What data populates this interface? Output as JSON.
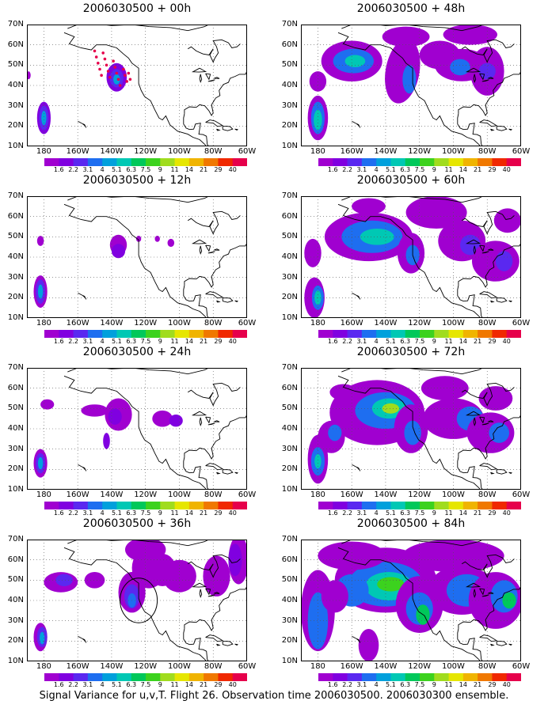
{
  "caption": "Signal Variance for u,v,T. Flight 26. Observation time 2006030500. 2006030300 ensemble.",
  "lat_labels": [
    "70N",
    "60N",
    "50N",
    "40N",
    "30N",
    "20N",
    "10N"
  ],
  "lon_labels": [
    "180",
    "160W",
    "140W",
    "120W",
    "100W",
    "80W",
    "60W"
  ],
  "colorbar": {
    "labels": [
      "1.6",
      "2.2",
      "3.1",
      "4",
      "5.1",
      "6.3",
      "7.5",
      "9",
      "11",
      "14",
      "21",
      "29",
      "40"
    ],
    "colors": [
      "#a000d0",
      "#8000e0",
      "#5a28f0",
      "#1e6ef0",
      "#00a0dc",
      "#00c8b4",
      "#00c85a",
      "#3cd21e",
      "#a0dc1e",
      "#e6e600",
      "#f0b400",
      "#f07800",
      "#f02800",
      "#e6004b"
    ]
  },
  "panels": [
    {
      "id": "p00",
      "title": "2006030500 + 00h"
    },
    {
      "id": "p48",
      "title": "2006030500 + 48h"
    },
    {
      "id": "p12",
      "title": "2006030500 + 12h"
    },
    {
      "id": "p60",
      "title": "2006030500 + 60h"
    },
    {
      "id": "p24",
      "title": "2006030500 + 24h"
    },
    {
      "id": "p72",
      "title": "2006030500 + 72h"
    },
    {
      "id": "p36",
      "title": "2006030500 + 36h"
    },
    {
      "id": "p84",
      "title": "2006030500 + 84h"
    }
  ]
}
